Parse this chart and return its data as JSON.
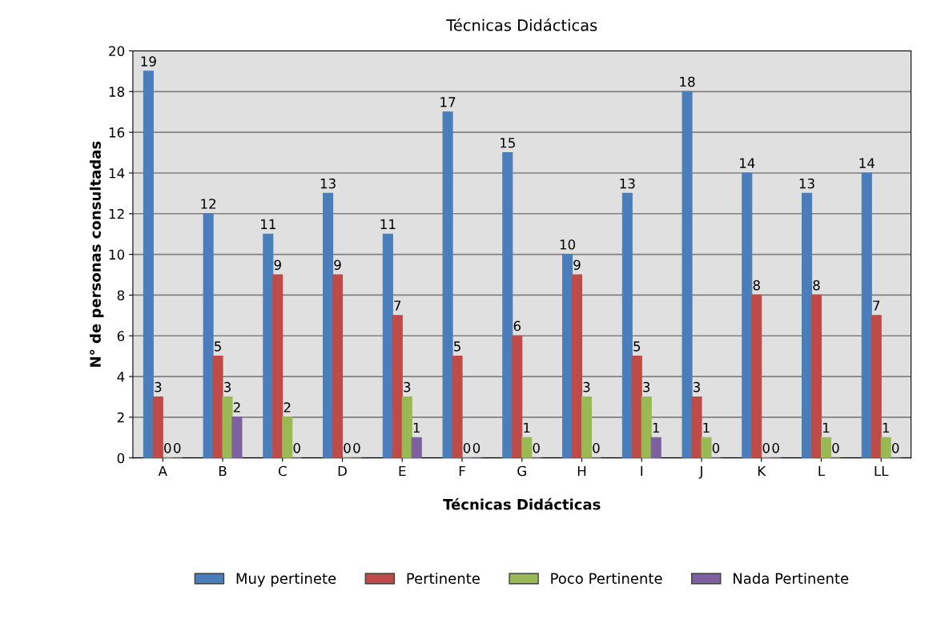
{
  "chart_data": {
    "type": "bar",
    "title": "Técnicas Didácticas",
    "xlabel": "Técnicas Didácticas",
    "ylabel": "N° de personas consultadas",
    "categories": [
      "A",
      "B",
      "C",
      "D",
      "E",
      "F",
      "G",
      "H",
      "I",
      "J",
      "K",
      "L",
      "LL"
    ],
    "series": [
      {
        "name": "Muy pertinete",
        "color": "#4a7ebb",
        "values": [
          19,
          12,
          11,
          13,
          11,
          17,
          15,
          10,
          13,
          18,
          14,
          13,
          14
        ]
      },
      {
        "name": "Pertinente",
        "color": "#be4b48",
        "values": [
          3,
          5,
          9,
          9,
          7,
          5,
          6,
          9,
          5,
          3,
          8,
          8,
          7
        ]
      },
      {
        "name": "Poco Pertinente",
        "color": "#98b954",
        "values": [
          0,
          3,
          2,
          0,
          3,
          0,
          1,
          3,
          3,
          1,
          0,
          1,
          1
        ]
      },
      {
        "name": "Nada Pertinente",
        "color": "#7d60a0",
        "values": [
          0,
          2,
          0,
          0,
          1,
          0,
          0,
          0,
          1,
          0,
          0,
          0,
          0
        ]
      }
    ],
    "ylim": [
      0,
      20
    ],
    "yticks": [
      0,
      2,
      4,
      6,
      8,
      10,
      12,
      14,
      16,
      18,
      20
    ],
    "grid": "y",
    "legend": "bottom",
    "data_labels": true
  }
}
